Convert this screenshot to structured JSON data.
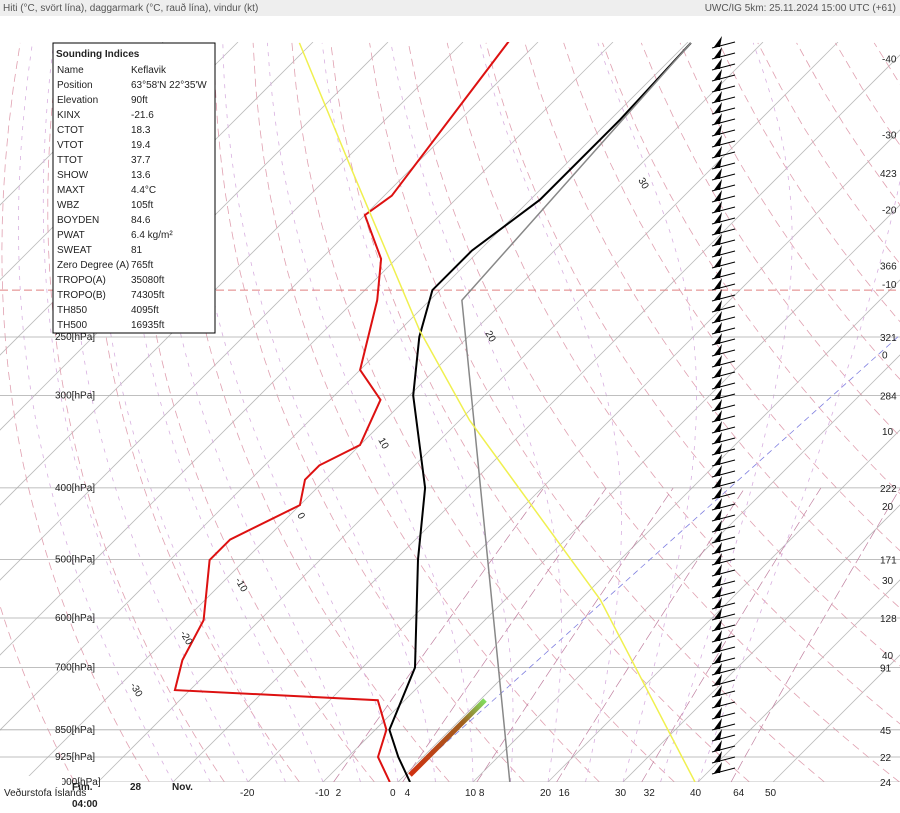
{
  "header": {
    "left": "Hiti (°C, svört lína), daggarmark (°C, rauð lína), vindur (kt)",
    "right": "UWC/IG 5km: 25.11.2024 15:00 UTC (+61)"
  },
  "indices": {
    "title": "Sounding Indices",
    "rows": [
      [
        "Name",
        "Keflavik"
      ],
      [
        "Position",
        "63°58'N 22°35'W"
      ],
      [
        "Elevation",
        "90ft"
      ],
      [
        "KINX",
        "-21.6"
      ],
      [
        "CTOT",
        "18.3"
      ],
      [
        "VTOT",
        "19.4"
      ],
      [
        "TTOT",
        "37.7"
      ],
      [
        "SHOW",
        "13.6"
      ],
      [
        "MAXT",
        "4.4°C"
      ],
      [
        "WBZ",
        "105ft"
      ],
      [
        "BOYDEN",
        "84.6"
      ],
      [
        "PWAT",
        "6.4 kg/m²"
      ],
      [
        "SWEAT",
        "81"
      ],
      [
        "Zero Degree (A)",
        "765ft"
      ],
      [
        "TROPO(A)",
        "35080ft"
      ],
      [
        "TROPO(B)",
        "74305ft"
      ],
      [
        "TH850",
        "4095ft"
      ],
      [
        "TH500",
        "16935ft"
      ]
    ],
    "highlight_color": "#d00000",
    "highlighted": [
      4,
      9
    ]
  },
  "chart_data": {
    "type": "skewt",
    "ylog": true,
    "ylim": [
      1000,
      100
    ],
    "yticks": [
      {
        "value": 250,
        "label": "250[hPa]"
      },
      {
        "value": 300,
        "label": "300[hPa]"
      },
      {
        "value": 400,
        "label": "400[hPa]"
      },
      {
        "value": 500,
        "label": "500[hPa]"
      },
      {
        "value": 600,
        "label": "600[hPa]"
      },
      {
        "value": 700,
        "label": "700[hPa]"
      },
      {
        "value": 850,
        "label": "850[hPa]"
      },
      {
        "value": 925,
        "label": "925[hPa]"
      },
      {
        "value": 1000,
        "label": "1000[hPa]"
      }
    ],
    "xticks": [
      -20,
      -10,
      0,
      10,
      20,
      30,
      40,
      50
    ],
    "height_labels": [
      {
        "value": 150,
        "label": "423"
      },
      {
        "value": 200,
        "label": "366"
      },
      {
        "value": 250,
        "label": "321"
      },
      {
        "value": 300,
        "label": "284"
      },
      {
        "value": 400,
        "label": "222"
      },
      {
        "value": 500,
        "label": "171"
      },
      {
        "value": 600,
        "label": "128"
      },
      {
        "value": 700,
        "label": "91"
      },
      {
        "value": 850,
        "label": "45"
      },
      {
        "value": 925,
        "label": "22"
      },
      {
        "value": 1000,
        "label": "24"
      }
    ],
    "isotherm_labels": [
      {
        "value": 105,
        "label": "-40"
      },
      {
        "value": 133,
        "label": "-30"
      },
      {
        "value": 168,
        "label": "-20"
      },
      {
        "value": 212,
        "label": "-10"
      },
      {
        "value": 264,
        "label": "0"
      },
      {
        "value": 335,
        "label": "10"
      },
      {
        "value": 423,
        "label": "20"
      },
      {
        "value": 533,
        "label": "30"
      },
      {
        "value": 673,
        "label": "40"
      }
    ],
    "mixing_ratios": [
      2,
      4,
      8,
      16,
      32,
      64
    ],
    "adiabat_labels": [
      "30",
      "20",
      "10",
      "0",
      "-10",
      "-20",
      "-30"
    ],
    "tropopause": 216,
    "series": [
      {
        "color": "#000000",
        "p": [
          1000,
          925,
          850,
          700,
          500,
          400,
          300,
          250,
          216,
          191,
          163,
          127,
          100
        ],
        "t": [
          1.6,
          -3.3,
          -8.1,
          -13,
          -27,
          -35.6,
          -49.5,
          -56.5,
          -61,
          -61,
          -58.7,
          -58.7,
          -59.5
        ]
      },
      {
        "color": "#dd1111",
        "p": [
          1000,
          925,
          850,
          775,
          751,
          684,
          604,
          501,
          470,
          422,
          390,
          373,
          350,
          304,
          277,
          223,
          196,
          171,
          161,
          99.4
        ],
        "t": [
          -1.1,
          -6,
          -8.5,
          -13.6,
          -42,
          -45,
          -47.5,
          -54.7,
          -54.7,
          -50,
          -52.7,
          -52.7,
          -50,
          -53.3,
          -60,
          -67,
          -72,
          -80,
          -79,
          -84
        ]
      },
      {
        "color": "#888888",
        "p": [
          1000,
          223,
          100
        ],
        "t": [
          14.9,
          -55.7,
          -59.5
        ]
      },
      {
        "color": "#f0f050",
        "p": [
          1000,
          567,
          324,
          245,
          148,
          100
        ],
        "t": [
          39.6,
          2.7,
          -38.7,
          -57.3,
          -88,
          -111.7
        ]
      }
    ]
  },
  "footer": {
    "logo": "Veðurstofa Íslands",
    "day": "Fim.",
    "date": "28",
    "month": "Nov.",
    "time": "04:00"
  }
}
